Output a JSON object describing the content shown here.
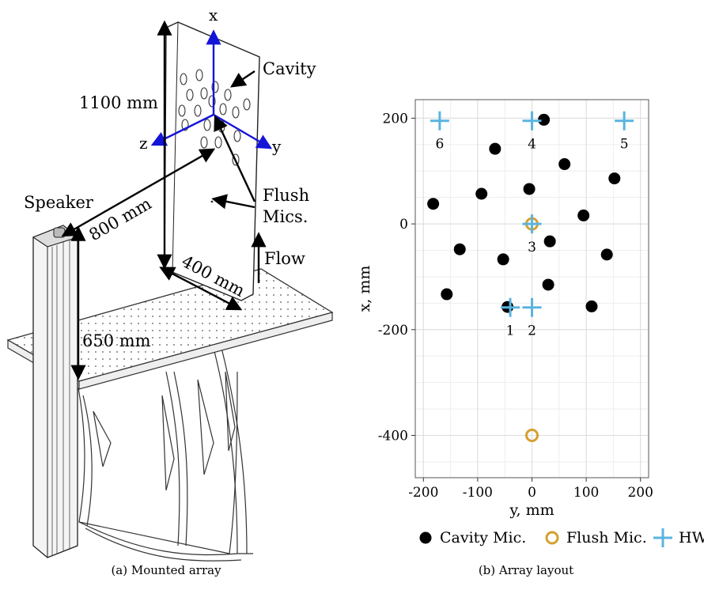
{
  "figure_a": {
    "caption": "(a) Mounted array",
    "labels": {
      "axis_x": "x",
      "axis_y": "y",
      "axis_z": "z",
      "cavity": "Cavity",
      "height": "1100 mm",
      "speaker": "Speaker",
      "distance": "800 mm",
      "width": "400 mm",
      "stand": "650 mm",
      "flush_line1": "Flush",
      "flush_line2": "Mics.",
      "flow": "Flow"
    }
  },
  "figure_b": {
    "caption": "(b) Array layout",
    "chart_data": {
      "type": "scatter",
      "xlabel": "y, mm",
      "ylabel": "x, mm",
      "xlim": [
        -215,
        215
      ],
      "ylim": [
        -480,
        235
      ],
      "xticks": [
        -200,
        -100,
        0,
        100,
        200
      ],
      "yticks": [
        -400,
        -200,
        0,
        200
      ],
      "xtick_labels": [
        "-200",
        "-100",
        "0",
        "100",
        "200"
      ],
      "ytick_labels": [
        "-400",
        "-200",
        "0",
        "200"
      ],
      "grid": true,
      "legend_position": "bottom",
      "series": [
        {
          "name": "Cavity Mic.",
          "marker": "filled-circle",
          "color": "#000000",
          "points": [
            [
              22,
              197
            ],
            [
              -68,
              142
            ],
            [
              60,
              113
            ],
            [
              152,
              86
            ],
            [
              -182,
              38
            ],
            [
              -93,
              57
            ],
            [
              -5,
              66
            ],
            [
              95,
              16
            ],
            [
              33,
              -33
            ],
            [
              -133,
              -48
            ],
            [
              -53,
              -67
            ],
            [
              138,
              -58
            ],
            [
              30,
              -115
            ],
            [
              -157,
              -133
            ],
            [
              -45,
              -157
            ],
            [
              110,
              -156
            ]
          ]
        },
        {
          "name": "Flush Mic.",
          "marker": "open-circle",
          "color": "#d4a030",
          "points": [
            [
              0,
              0
            ],
            [
              0,
              -400
            ]
          ]
        },
        {
          "name": "HWA",
          "marker": "plus",
          "color": "#5ab4e0",
          "points": [
            [
              -170,
              195
            ],
            [
              0,
              195
            ],
            [
              170,
              195
            ],
            [
              0,
              0
            ],
            [
              -40,
              -158
            ],
            [
              0,
              -158
            ]
          ],
          "point_labels": [
            "6",
            "4",
            "5",
            "3",
            "1",
            "2"
          ]
        }
      ]
    }
  }
}
